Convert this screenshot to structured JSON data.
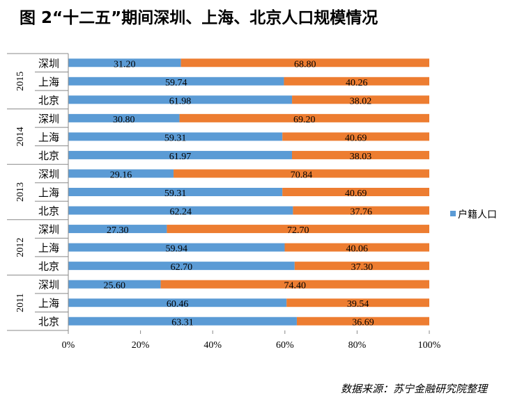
{
  "title": "图 2“十二五”期间深圳、上海、北京人口规模情况",
  "source": "数据来源：苏宁金融研究院整理",
  "chart_data": {
    "type": "bar",
    "orientation": "horizontal",
    "stacked": "percent",
    "groups": [
      {
        "year": "2015",
        "cities": [
          "深圳",
          "上海",
          "北京"
        ],
        "values_a": [
          31.2,
          59.74,
          61.98
        ],
        "values_b": [
          68.8,
          40.26,
          38.02
        ]
      },
      {
        "year": "2014",
        "cities": [
          "深圳",
          "上海",
          "北京"
        ],
        "values_a": [
          30.8,
          59.31,
          61.97
        ],
        "values_b": [
          69.2,
          40.69,
          38.03
        ]
      },
      {
        "year": "2013",
        "cities": [
          "深圳",
          "上海",
          "北京"
        ],
        "values_a": [
          29.16,
          59.31,
          62.24
        ],
        "values_b": [
          70.84,
          40.69,
          37.76
        ]
      },
      {
        "year": "2012",
        "cities": [
          "深圳",
          "上海",
          "北京"
        ],
        "values_a": [
          27.3,
          59.94,
          62.7
        ],
        "values_b": [
          72.7,
          40.06,
          37.3
        ]
      },
      {
        "year": "2011",
        "cities": [
          "深圳",
          "上海",
          "北京"
        ],
        "values_a": [
          25.6,
          60.46,
          63.31
        ],
        "values_b": [
          74.4,
          39.54,
          36.69
        ]
      }
    ],
    "series": [
      {
        "name": "户籍人口",
        "color": "#5B9BD5"
      },
      {
        "color": "#ED7D31"
      }
    ],
    "xticks": [
      "0%",
      "20%",
      "40%",
      "60%",
      "80%",
      "100%"
    ],
    "xlim": [
      0,
      100
    ],
    "grid": false,
    "legend": "right"
  }
}
